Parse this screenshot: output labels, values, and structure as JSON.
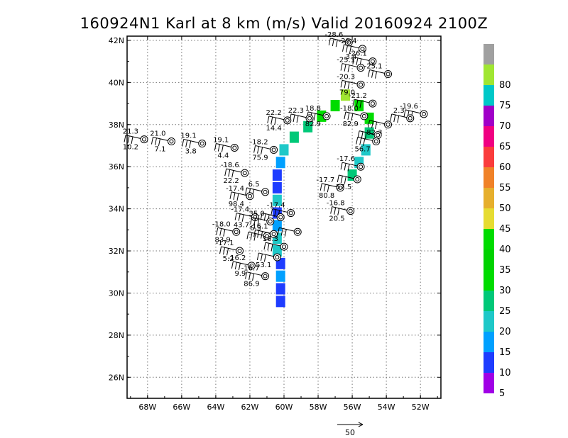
{
  "chart_data": {
    "type": "scatter",
    "title": "160924N1 Karl at 8 km (m/s) Valid 20160924 2100Z",
    "x_ticks": [
      "68W",
      "66W",
      "64W",
      "62W",
      "60W",
      "58W",
      "56W",
      "54W",
      "52W"
    ],
    "y_ticks": [
      "42N",
      "40N",
      "38N",
      "36N",
      "34N",
      "32N",
      "30N",
      "28N",
      "26N"
    ],
    "xlim": [
      -69.2,
      -50.8
    ],
    "ylim": [
      25,
      42.2
    ],
    "grid": true,
    "reference_vector_label": "50",
    "colorbar": [
      {
        "label": "",
        "color": "#a0a0a0"
      },
      {
        "label": "80",
        "color": "#a0e632"
      },
      {
        "label": "75",
        "color": "#00c8c8"
      },
      {
        "label": "70",
        "color": "#a000c8"
      },
      {
        "label": "65",
        "color": "#f00082"
      },
      {
        "label": "60",
        "color": "#fa3c3c"
      },
      {
        "label": "55",
        "color": "#f08228"
      },
      {
        "label": "50",
        "color": "#e6af2d"
      },
      {
        "label": "45",
        "color": "#e6dc32"
      },
      {
        "label": "40",
        "color": "#00dc00"
      },
      {
        "label": "35",
        "color": "#00d200"
      },
      {
        "label": "30",
        "color": "#00dc00"
      },
      {
        "label": "25",
        "color": "#00c878"
      },
      {
        "label": "20",
        "color": "#1ec8c8"
      },
      {
        "label": "15",
        "color": "#00a0ff"
      },
      {
        "label": "10",
        "color": "#1e3cff"
      },
      {
        "label": "5",
        "color": "#a000e6"
      }
    ],
    "observations": [
      {
        "lon": -56.2,
        "lat": 41.9,
        "t": "-28.6",
        "v": ""
      },
      {
        "lon": -55.4,
        "lat": 41.6,
        "t": "-29.4",
        "v": "3.4"
      },
      {
        "lon": -54.8,
        "lat": 41.0,
        "t": "-26.1",
        "v": ""
      },
      {
        "lon": -55.5,
        "lat": 40.7,
        "t": "-25.1",
        "v": ""
      },
      {
        "lon": -53.9,
        "lat": 40.4,
        "t": "-25.1",
        "v": ""
      },
      {
        "lon": -55.5,
        "lat": 39.9,
        "t": "-20.3",
        "v": "79.0"
      },
      {
        "lon": -54.8,
        "lat": 39.0,
        "t": "-21.2",
        "v": ""
      },
      {
        "lon": -55.3,
        "lat": 38.4,
        "t": "-18.0",
        "v": "82.9"
      },
      {
        "lon": -57.5,
        "lat": 38.4,
        "t": "18.8",
        "v": "82.9"
      },
      {
        "lon": -58.5,
        "lat": 38.3,
        "t": "22.3",
        "v": ""
      },
      {
        "lon": -59.8,
        "lat": 38.2,
        "t": "22.2",
        "v": "14.4"
      },
      {
        "lon": -51.8,
        "lat": 38.5,
        "t": "-19.6",
        "v": ""
      },
      {
        "lon": -52.6,
        "lat": 38.3,
        "t": "2.3",
        "v": ""
      },
      {
        "lon": -53.9,
        "lat": 38.0,
        "t": "",
        "v": "82.3"
      },
      {
        "lon": -54.5,
        "lat": 37.5,
        "t": "",
        "v": ""
      },
      {
        "lon": -54.6,
        "lat": 37.2,
        "t": "",
        "v": "56.7"
      },
      {
        "lon": -68.2,
        "lat": 37.3,
        "t": "21.3",
        "v": "10.2"
      },
      {
        "lon": -66.6,
        "lat": 37.2,
        "t": "21.0",
        "v": "7.1"
      },
      {
        "lon": -64.8,
        "lat": 37.1,
        "t": "19.1",
        "v": "3.8"
      },
      {
        "lon": -62.9,
        "lat": 36.9,
        "t": "19.1",
        "v": "4.4"
      },
      {
        "lon": -60.6,
        "lat": 36.8,
        "t": "-18.2",
        "v": "75.9"
      },
      {
        "lon": -62.3,
        "lat": 35.7,
        "t": "-18.6",
        "v": "22.2"
      },
      {
        "lon": -61.1,
        "lat": 34.8,
        "t": "6.5",
        "v": ""
      },
      {
        "lon": -62.0,
        "lat": 34.6,
        "t": "-17.4",
        "v": "98.4"
      },
      {
        "lon": -55.5,
        "lat": 36.0,
        "t": "-17.6",
        "v": ""
      },
      {
        "lon": -56.7,
        "lat": 35.0,
        "t": "-17.7",
        "v": "80.8"
      },
      {
        "lon": -55.7,
        "lat": 35.4,
        "t": "",
        "v": "57.5"
      },
      {
        "lon": -56.1,
        "lat": 33.9,
        "t": "-16.8",
        "v": "20.5"
      },
      {
        "lon": -59.6,
        "lat": 33.8,
        "t": "-17.4",
        "v": ""
      },
      {
        "lon": -60.2,
        "lat": 33.6,
        "t": "",
        "v": ""
      },
      {
        "lon": -61.7,
        "lat": 33.6,
        "t": "-17.4",
        "v": "43.7"
      },
      {
        "lon": -60.8,
        "lat": 33.4,
        "t": "35.0",
        "v": ""
      },
      {
        "lon": -59.2,
        "lat": 32.9,
        "t": "",
        "v": ""
      },
      {
        "lon": -60.6,
        "lat": 32.8,
        "t": "-16.1",
        "v": ""
      },
      {
        "lon": -62.8,
        "lat": 32.9,
        "t": "-18.0",
        "v": "83.9"
      },
      {
        "lon": -61.0,
        "lat": 32.7,
        "t": "6.3",
        "v": ""
      },
      {
        "lon": -60.0,
        "lat": 32.2,
        "t": "16.3",
        "v": ""
      },
      {
        "lon": -62.6,
        "lat": 32.0,
        "t": "-17.1",
        "v": "5.2"
      },
      {
        "lon": -60.4,
        "lat": 31.7,
        "t": "",
        "v": "53.1"
      },
      {
        "lon": -61.9,
        "lat": 31.3,
        "t": "-16.2",
        "v": "9.9"
      },
      {
        "lon": -61.1,
        "lat": 30.8,
        "t": "-16.7",
        "v": "86.9"
      }
    ],
    "wind_cells": [
      {
        "lon": -60.2,
        "lat": 30.2,
        "c": "#1e3cff"
      },
      {
        "lon": -60.2,
        "lat": 29.6,
        "c": "#1e3cff"
      },
      {
        "lon": -60.2,
        "lat": 30.8,
        "c": "#00a0ff"
      },
      {
        "lon": -60.2,
        "lat": 31.4,
        "c": "#1e3cff"
      },
      {
        "lon": -60.4,
        "lat": 32.0,
        "c": "#1ec8c8"
      },
      {
        "lon": -60.4,
        "lat": 32.6,
        "c": "#1ec8c8"
      },
      {
        "lon": -60.4,
        "lat": 33.2,
        "c": "#00a0ff"
      },
      {
        "lon": -60.4,
        "lat": 33.8,
        "c": "#1e3cff"
      },
      {
        "lon": -60.4,
        "lat": 34.4,
        "c": "#1ec8c8"
      },
      {
        "lon": -60.4,
        "lat": 35.0,
        "c": "#1e3cff"
      },
      {
        "lon": -60.4,
        "lat": 35.6,
        "c": "#1e3cff"
      },
      {
        "lon": -60.2,
        "lat": 36.2,
        "c": "#00a0ff"
      },
      {
        "lon": -60.0,
        "lat": 36.8,
        "c": "#1ec8c8"
      },
      {
        "lon": -59.4,
        "lat": 37.4,
        "c": "#00c878"
      },
      {
        "lon": -58.6,
        "lat": 37.9,
        "c": "#00c878"
      },
      {
        "lon": -57.8,
        "lat": 38.4,
        "c": "#00dc00"
      },
      {
        "lon": -57.0,
        "lat": 38.9,
        "c": "#00dc00"
      },
      {
        "lon": -56.4,
        "lat": 39.4,
        "c": "#a0e632"
      },
      {
        "lon": -55.6,
        "lat": 38.9,
        "c": "#00dc00"
      },
      {
        "lon": -55.0,
        "lat": 38.3,
        "c": "#00dc00"
      },
      {
        "lon": -55.0,
        "lat": 37.6,
        "c": "#00c878"
      },
      {
        "lon": -55.2,
        "lat": 36.8,
        "c": "#1ec8c8"
      },
      {
        "lon": -55.6,
        "lat": 36.2,
        "c": "#1ec8c8"
      },
      {
        "lon": -56.0,
        "lat": 35.6,
        "c": "#00c878"
      }
    ]
  }
}
